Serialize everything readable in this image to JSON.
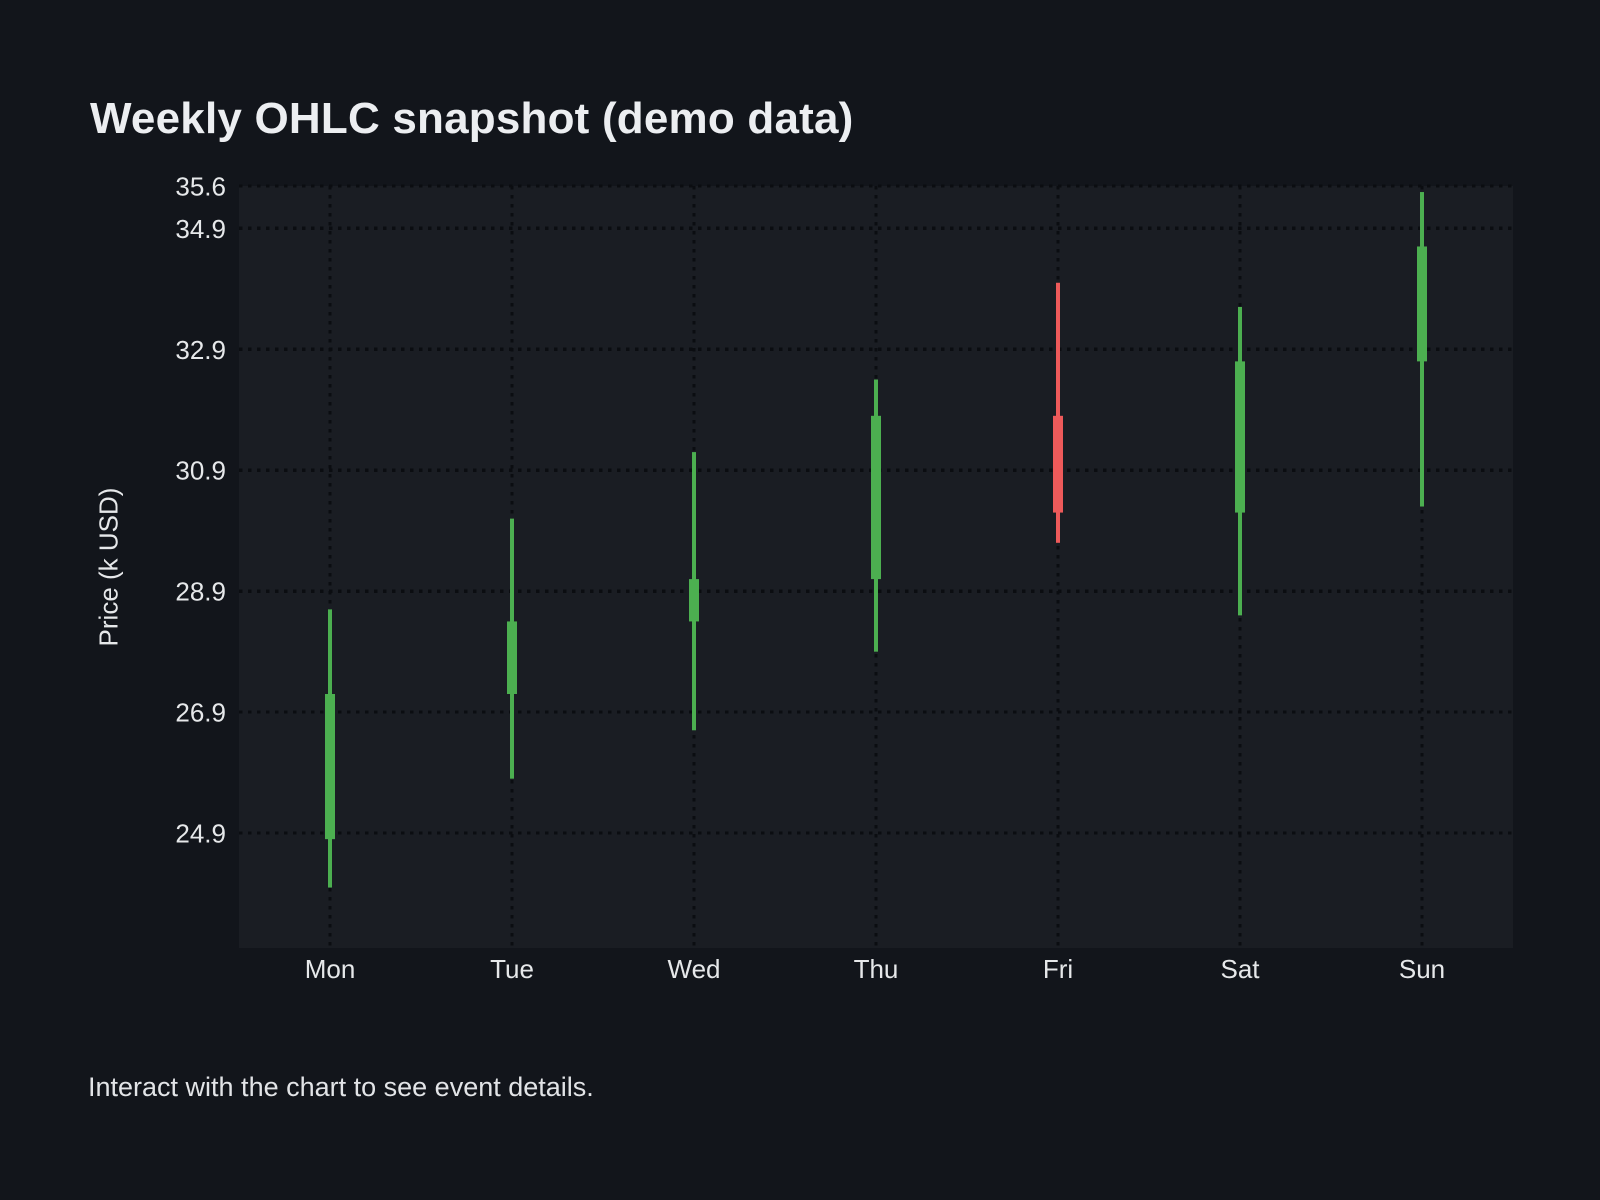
{
  "title": "Weekly OHLC snapshot (demo data)",
  "footer": {
    "text": "Interact with the chart to see event details."
  },
  "colors": {
    "page_background": "#12151b",
    "plot_background": "#1a1d23",
    "grid": "#0b0d11",
    "up": "#4caf50",
    "down": "#ee5a5a",
    "text": "#e6e8ea",
    "title_text": "#eceef1"
  },
  "chart_data": {
    "type": "candlestick",
    "title": "Weekly OHLC snapshot (demo data)",
    "xlabel": "",
    "ylabel": "Price (k USD)",
    "categories": [
      "Mon",
      "Tue",
      "Wed",
      "Thu",
      "Fri",
      "Sat",
      "Sun"
    ],
    "series": [
      {
        "name": "OHLC",
        "points": [
          {
            "day": "Mon",
            "open": 24.8,
            "high": 28.6,
            "low": 24.0,
            "close": 27.2
          },
          {
            "day": "Tue",
            "open": 27.2,
            "high": 30.1,
            "low": 25.8,
            "close": 28.4
          },
          {
            "day": "Wed",
            "open": 28.4,
            "high": 31.2,
            "low": 26.6,
            "close": 29.1
          },
          {
            "day": "Thu",
            "open": 29.1,
            "high": 32.4,
            "low": 27.9,
            "close": 31.8
          },
          {
            "day": "Fri",
            "open": 31.8,
            "high": 34.0,
            "low": 29.7,
            "close": 30.2
          },
          {
            "day": "Sat",
            "open": 30.2,
            "high": 33.6,
            "low": 28.5,
            "close": 32.7
          },
          {
            "day": "Sun",
            "open": 32.7,
            "high": 35.5,
            "low": 30.3,
            "close": 34.6
          }
        ]
      }
    ],
    "y_ticks": [
      24.9,
      26.9,
      28.9,
      30.9,
      32.9,
      34.9,
      35.6
    ],
    "ylim": [
      23.0,
      35.6
    ],
    "grid": "dotted",
    "legend": "none"
  }
}
